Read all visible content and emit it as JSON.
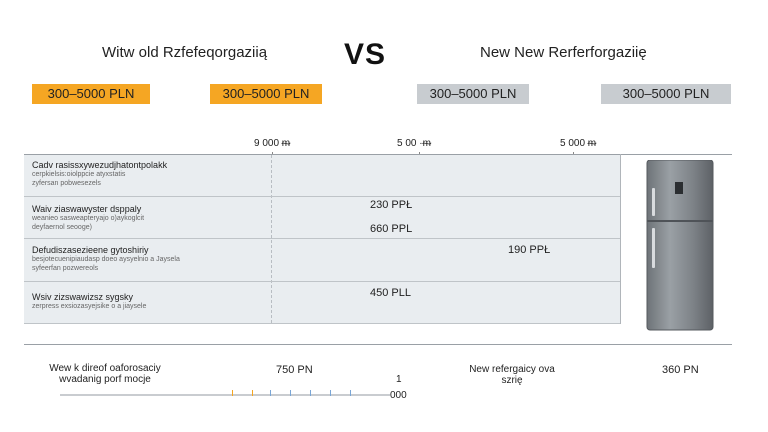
{
  "header": {
    "left_title": "Witw old Rzfefeqorgaziią",
    "vs": "VS",
    "right_title": "New New Rerferforgaziię"
  },
  "badges": [
    {
      "label": "300–5000 PLN",
      "color": "#f5a623"
    },
    {
      "label": "300–5000 PLN",
      "color": "#f5a623"
    },
    {
      "label": "300–5000 PLN",
      "color": "#c8ccd0"
    },
    {
      "label": "300–5000 PLN",
      "color": "#c8ccd0"
    }
  ],
  "columns": [
    "9 000 ᵯ",
    "5 00 ·ᵯ",
    "5 000 ᵯ"
  ],
  "rows": [
    {
      "title": "Cadv rasissxywezudjhatontpolakk",
      "sub": [
        "cerpkielsis:oiolppcie atyxstatis",
        "zyfersan pobwesezels"
      ],
      "value": ""
    },
    {
      "title": "Waiv ziaswawyster dsppaly",
      "sub": [
        "weanieo sasweapteryajo o)aykoglcit",
        "deyfaernol seooge)"
      ],
      "value": "230 PPŁ"
    },
    {
      "title": "",
      "sub": [],
      "value": "660 PPL"
    },
    {
      "title": "Defudiszasezieene gytoshiriy",
      "sub": [
        "besjotecuenipiaudasp doeo aysyelnio a Jaysela",
        "syfeerfan pozwereols"
      ],
      "value": "190 PPŁ"
    },
    {
      "title": "Wsiv zizswawizsz sygsky",
      "sub": [
        "zerpress exsiozasyejsike o a jiaysele"
      ],
      "value": "450 PLL"
    }
  ],
  "footer": {
    "left_label": "Wew k direof oaforosaciy wvadanig porf mocje",
    "left_value": "750 PN",
    "scale_top": "1",
    "scale_bottom": "000",
    "right_label": "New refergaicy ova szrię",
    "right_value": "360 PN"
  },
  "product_image": "refrigerator-image"
}
